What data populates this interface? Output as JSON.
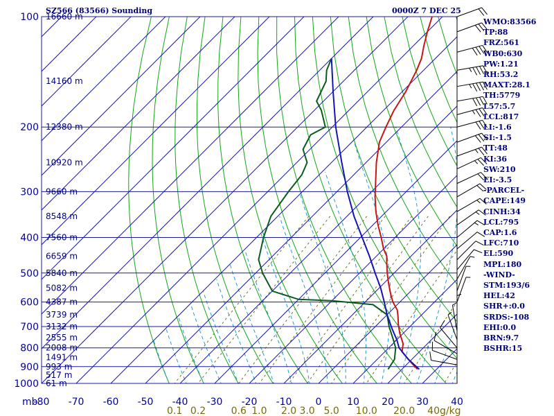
{
  "header": {
    "station": "SZ566 (83566) Sounding",
    "time": "0000Z  7 DEC 25"
  },
  "stats": [
    "WMO:83566",
    "TP:88",
    "FRZ:561",
    "WB0:630",
    "PW:1.21",
    "RH:53.2",
    "MAXT:28.1",
    "TH:5779",
    "L57:5.7",
    "LCL:817",
    "LI:-1.6",
    "SI:-1.5",
    "TT:48",
    "KI:36",
    "SW:210",
    "EI:-3.5",
    "-PARCEL-",
    "CAPE:149",
    "CINH:34",
    "LCL:795",
    "CAP:1.6",
    "LFC:710",
    "EL:590",
    "MPL:180",
    "-WIND-",
    "STM:193/6",
    "HEL:42",
    "SHR+:0.0",
    "SRDS:-108",
    "EHI:0.0",
    "BRN:9.7",
    "BSHR:15"
  ],
  "colors": {
    "grid": "#1a1a9e",
    "dry_adiabat": "#11a611",
    "moist_adiabat": "#1e9bd7",
    "mixing_ratio": "#6e6e1e",
    "temperature": "#c81414",
    "dewpoint": "#0a5a1e",
    "parcel": "#1414b4",
    "wind": "#000000"
  },
  "chart_data": {
    "type": "line",
    "title": "SZ566 (83566) Sounding",
    "xlabel": "",
    "ylabel": "mb",
    "y_scale": "log",
    "ylim": [
      1000,
      100
    ],
    "xlim": [
      -80,
      40
    ],
    "pressure_ticks": [
      "100",
      "200",
      "300",
      "400",
      "500",
      "600",
      "700",
      "800",
      "900",
      "1000"
    ],
    "temp_ticks": [
      "-80",
      "-70",
      "-60",
      "-50",
      "-40",
      "-30",
      "-20",
      "-10",
      "0",
      "10",
      "20",
      "30",
      "40"
    ],
    "mixing_ratio_labels": [
      "0.1",
      "0.2",
      "0.6",
      "1.0",
      "2.0",
      "3.0",
      "5.0",
      "10.0",
      "20.0",
      "40g/kg"
    ],
    "height_labels": [
      {
        "p": 100,
        "label": "16660 m"
      },
      {
        "p": 150,
        "label": "14160 m"
      },
      {
        "p": 200,
        "label": "12380 m"
      },
      {
        "p": 250,
        "label": "10920 m"
      },
      {
        "p": 300,
        "label": "9660 m"
      },
      {
        "p": 350,
        "label": "8548 m"
      },
      {
        "p": 400,
        "label": "7560 m"
      },
      {
        "p": 450,
        "label": "6659 m"
      },
      {
        "p": 500,
        "label": "5840 m"
      },
      {
        "p": 550,
        "label": "5082 m"
      },
      {
        "p": 600,
        "label": "4387 m"
      },
      {
        "p": 650,
        "label": "3739 m"
      },
      {
        "p": 700,
        "label": "3132 m"
      },
      {
        "p": 750,
        "label": "2555 m"
      },
      {
        "p": 800,
        "label": "2008 m"
      },
      {
        "p": 850,
        "label": "1491 m"
      },
      {
        "p": 900,
        "label": "993 m"
      },
      {
        "p": 950,
        "label": "517 m"
      },
      {
        "p": 1000,
        "label": "61 m"
      }
    ],
    "series": [
      {
        "values": [
          {
            "p": 915,
            "t": 24.5
          },
          {
            "p": 890,
            "t": 22
          },
          {
            "p": 860,
            "t": 19
          },
          {
            "p": 820,
            "t": 15
          },
          {
            "p": 780,
            "t": 13
          },
          {
            "p": 730,
            "t": 9
          },
          {
            "p": 690,
            "t": 6
          },
          {
            "p": 655,
            "t": 3.5
          },
          {
            "p": 630,
            "t": 1.5
          },
          {
            "p": 600,
            "t": -2
          },
          {
            "p": 580,
            "t": -4
          },
          {
            "p": 560,
            "t": -6
          },
          {
            "p": 530,
            "t": -9
          },
          {
            "p": 500,
            "t": -12
          },
          {
            "p": 470,
            "t": -15
          },
          {
            "p": 450,
            "t": -17
          },
          {
            "p": 430,
            "t": -20
          },
          {
            "p": 400,
            "t": -24
          },
          {
            "p": 370,
            "t": -28.5
          },
          {
            "p": 340,
            "t": -33
          },
          {
            "p": 310,
            "t": -37.5
          },
          {
            "p": 280,
            "t": -42
          },
          {
            "p": 250,
            "t": -47
          },
          {
            "p": 220,
            "t": -52
          },
          {
            "p": 200,
            "t": -54.5
          },
          {
            "p": 180,
            "t": -57
          },
          {
            "p": 160,
            "t": -59
          },
          {
            "p": 140,
            "t": -62
          },
          {
            "p": 130,
            "t": -64
          },
          {
            "p": 120,
            "t": -67
          },
          {
            "p": 110,
            "t": -70
          },
          {
            "p": 100,
            "t": -73
          }
        ]
      },
      {
        "values": [
          {
            "p": 915,
            "t": 16
          },
          {
            "p": 860,
            "t": 15
          },
          {
            "p": 800,
            "t": 12
          },
          {
            "p": 760,
            "t": 9
          },
          {
            "p": 700,
            "t": 4
          },
          {
            "p": 650,
            "t": 0
          },
          {
            "p": 610,
            "t": -7
          },
          {
            "p": 595,
            "t": -20
          },
          {
            "p": 590,
            "t": -30
          },
          {
            "p": 560,
            "t": -40
          },
          {
            "p": 500,
            "t": -48
          },
          {
            "p": 460,
            "t": -53
          },
          {
            "p": 400,
            "t": -58
          },
          {
            "p": 350,
            "t": -62
          },
          {
            "p": 300,
            "t": -64
          },
          {
            "p": 270,
            "t": -65
          },
          {
            "p": 250,
            "t": -67
          },
          {
            "p": 230,
            "t": -72
          },
          {
            "p": 210,
            "t": -74
          },
          {
            "p": 200,
            "t": -72
          },
          {
            "p": 180,
            "t": -78
          },
          {
            "p": 170,
            "t": -82
          },
          {
            "p": 150,
            "t": -85
          },
          {
            "p": 140,
            "t": -88
          },
          {
            "p": 130,
            "t": -90
          }
        ]
      },
      {
        "values": [
          {
            "p": 915,
            "t": 25
          },
          {
            "p": 860,
            "t": 19
          },
          {
            "p": 800,
            "t": 13
          },
          {
            "p": 760,
            "t": 10
          },
          {
            "p": 710,
            "t": 5.5
          },
          {
            "p": 650,
            "t": 0
          },
          {
            "p": 600,
            "t": -4.5
          },
          {
            "p": 550,
            "t": -9.5
          },
          {
            "p": 500,
            "t": -15.5
          },
          {
            "p": 450,
            "t": -22
          },
          {
            "p": 400,
            "t": -29.5
          },
          {
            "p": 350,
            "t": -38
          },
          {
            "p": 300,
            "t": -47
          },
          {
            "p": 250,
            "t": -57
          },
          {
            "p": 200,
            "t": -69
          },
          {
            "p": 160,
            "t": -80
          },
          {
            "p": 130,
            "t": -90
          }
        ]
      }
    ]
  },
  "wind_barbs": [
    {
      "p": 100,
      "dir": 250,
      "spd": 20
    },
    {
      "p": 110,
      "dir": 250,
      "spd": 30
    },
    {
      "p": 125,
      "dir": 255,
      "spd": 40
    },
    {
      "p": 140,
      "dir": 260,
      "spd": 45
    },
    {
      "p": 155,
      "dir": 260,
      "spd": 45
    },
    {
      "p": 170,
      "dir": 260,
      "spd": 40
    },
    {
      "p": 185,
      "dir": 255,
      "spd": 35
    },
    {
      "p": 200,
      "dir": 255,
      "spd": 30
    },
    {
      "p": 220,
      "dir": 250,
      "spd": 30
    },
    {
      "p": 240,
      "dir": 250,
      "spd": 25
    },
    {
      "p": 260,
      "dir": 245,
      "spd": 25
    },
    {
      "p": 285,
      "dir": 245,
      "spd": 20
    },
    {
      "p": 310,
      "dir": 240,
      "spd": 20
    },
    {
      "p": 340,
      "dir": 240,
      "spd": 15
    },
    {
      "p": 370,
      "dir": 235,
      "spd": 15
    },
    {
      "p": 400,
      "dir": 230,
      "spd": 15
    },
    {
      "p": 430,
      "dir": 230,
      "spd": 10
    },
    {
      "p": 460,
      "dir": 225,
      "spd": 10
    },
    {
      "p": 490,
      "dir": 220,
      "spd": 10
    },
    {
      "p": 520,
      "dir": 210,
      "spd": 5
    },
    {
      "p": 560,
      "dir": 200,
      "spd": 5
    },
    {
      "p": 600,
      "dir": 200,
      "spd": 5
    },
    {
      "p": 680,
      "dir": 180,
      "spd": 5
    },
    {
      "p": 720,
      "dir": 170,
      "spd": 5
    },
    {
      "p": 760,
      "dir": 160,
      "spd": 5
    },
    {
      "p": 800,
      "dir": 140,
      "spd": 10
    },
    {
      "p": 830,
      "dir": 120,
      "spd": 10
    },
    {
      "p": 860,
      "dir": 110,
      "spd": 10
    },
    {
      "p": 890,
      "dir": 100,
      "spd": 10
    }
  ]
}
